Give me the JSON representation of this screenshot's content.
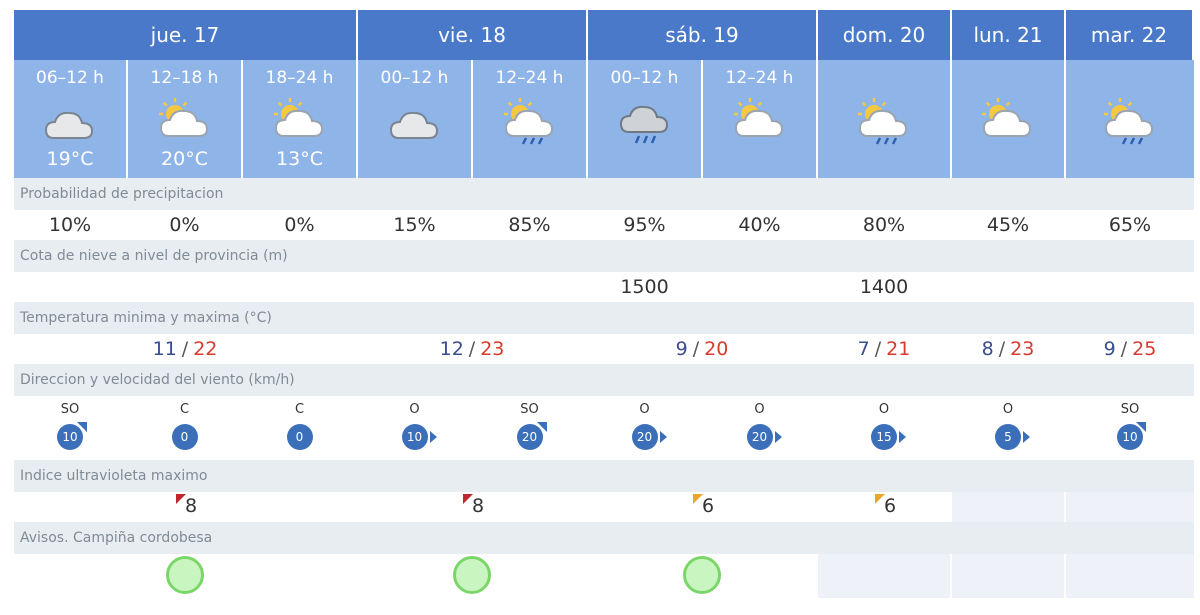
{
  "days": [
    "jue. 17",
    "vie. 18",
    "sáb. 19",
    "dom. 20",
    "lun. 21",
    "mar. 22"
  ],
  "periods": [
    {
      "label": "06–12 h",
      "icon": "cloudy-icon",
      "temp": "19°C"
    },
    {
      "label": "12–18 h",
      "icon": "sun-cloud-icon",
      "temp": "20°C"
    },
    {
      "label": "18–24 h",
      "icon": "sun-cloud-icon",
      "temp": "13°C"
    },
    {
      "label": "00–12 h",
      "icon": "cloudy-icon",
      "temp": ""
    },
    {
      "label": "12–24 h",
      "icon": "sun-cloud-rain-icon",
      "temp": ""
    },
    {
      "label": "00–12 h",
      "icon": "dark-cloud-rain-icon",
      "temp": ""
    },
    {
      "label": "12–24 h",
      "icon": "sun-cloud-icon",
      "temp": ""
    },
    {
      "label": "",
      "icon": "sun-cloud-rain-icon",
      "temp": ""
    },
    {
      "label": "",
      "icon": "sun-cloud-icon",
      "temp": ""
    },
    {
      "label": "",
      "icon": "sun-cloud-rain-icon",
      "temp": ""
    }
  ],
  "sections": {
    "precip": "Probabilidad de precipitacion",
    "snow": "Cota de nieve a nivel de provincia (m)",
    "temp": "Temperatura minima y maxima (°C)",
    "wind": "Direccion y velocidad del viento (km/h)",
    "uv": "Indice ultravioleta maximo",
    "avisos": "Avisos. Campiña cordobesa"
  },
  "precip": [
    "10%",
    "0%",
    "0%",
    "15%",
    "85%",
    "95%",
    "40%",
    "80%",
    "45%",
    "65%"
  ],
  "snow": [
    "",
    "",
    "",
    "",
    "",
    "1500",
    "",
    "1400",
    "",
    ""
  ],
  "temps": [
    {
      "min": "11",
      "sep": "/",
      "max": "22"
    },
    {
      "min": "12",
      "sep": "/",
      "max": "23"
    },
    {
      "min": "9",
      "sep": "/",
      "max": "20"
    },
    {
      "min": "7",
      "sep": "/",
      "max": "21"
    },
    {
      "min": "8",
      "sep": "/",
      "max": "23"
    },
    {
      "min": "9",
      "sep": "/",
      "max": "25"
    }
  ],
  "wind": [
    {
      "dir": "SO",
      "speed": "10",
      "arrow": "ne-arrow"
    },
    {
      "dir": "C",
      "speed": "0",
      "arrow": ""
    },
    {
      "dir": "C",
      "speed": "0",
      "arrow": ""
    },
    {
      "dir": "O",
      "speed": "10",
      "arrow": "e-arrow"
    },
    {
      "dir": "SO",
      "speed": "20",
      "arrow": "ne-arrow"
    },
    {
      "dir": "O",
      "speed": "20",
      "arrow": "e-arrow"
    },
    {
      "dir": "O",
      "speed": "20",
      "arrow": "e-arrow"
    },
    {
      "dir": "O",
      "speed": "15",
      "arrow": "e-arrow"
    },
    {
      "dir": "O",
      "speed": "5",
      "arrow": "e-arrow"
    },
    {
      "dir": "SO",
      "speed": "10",
      "arrow": "ne-arrow"
    }
  ],
  "uv": [
    {
      "value": "8",
      "level": "very-high"
    },
    {
      "value": "8",
      "level": "very-high"
    },
    {
      "value": "6",
      "level": "high"
    },
    {
      "value": "6",
      "level": "high"
    },
    {
      "value": "",
      "level": ""
    },
    {
      "value": "",
      "level": ""
    }
  ],
  "colors": {
    "header": "#4a79c9",
    "period": "#8fb5e8",
    "tmin": "#3a4d8f",
    "tmax": "#d73a2f",
    "uv_very_high": "#c0272d",
    "uv_high": "#e9a62b",
    "aviso_green": "#7bd66a"
  }
}
